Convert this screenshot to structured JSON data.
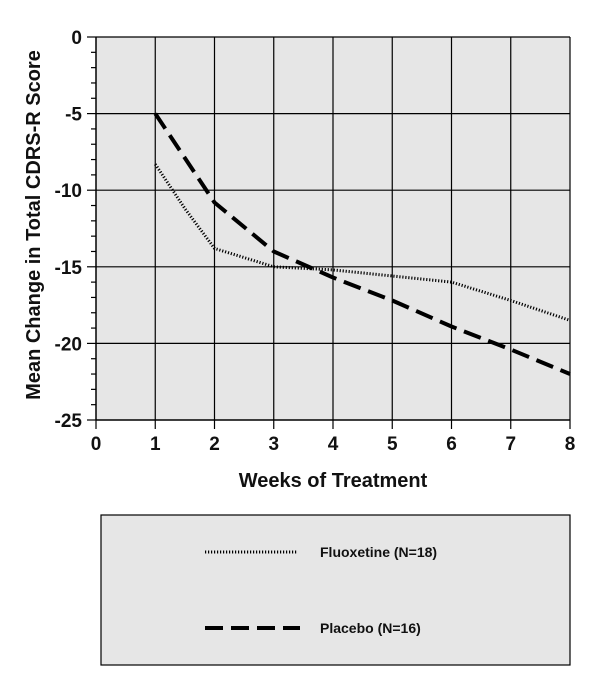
{
  "chart_data": {
    "type": "line",
    "xlabel": "Weeks of Treatment",
    "ylabel": "Mean Change in Total CDRS-R Score",
    "xlim": [
      0,
      8
    ],
    "ylim": [
      -25,
      0
    ],
    "x_ticks": [
      "0",
      "1",
      "2",
      "3",
      "4",
      "5",
      "6",
      "7",
      "8"
    ],
    "y_ticks": [
      "0",
      "-5",
      "-10",
      "-15",
      "-20",
      "-25"
    ],
    "grid": true,
    "legend_position": "bottom",
    "plot_background": "#e6e6e6",
    "series": [
      {
        "name": "Fluoxetine (N=18)",
        "style": "dotted",
        "color": "#000000",
        "x": [
          1,
          1.5,
          2,
          3,
          4,
          5,
          6,
          7,
          8
        ],
        "y": [
          -8.3,
          -11.2,
          -13.8,
          -15.0,
          -15.2,
          -15.6,
          -16.0,
          -17.2,
          -18.5
        ]
      },
      {
        "name": "Placebo (N=16)",
        "style": "dashed",
        "color": "#000000",
        "x": [
          1,
          2,
          3,
          4,
          5,
          6,
          7,
          8
        ],
        "y": [
          -5.0,
          -10.8,
          -14.0,
          -15.7,
          -17.2,
          -18.9,
          -20.4,
          -22.0
        ]
      }
    ]
  }
}
